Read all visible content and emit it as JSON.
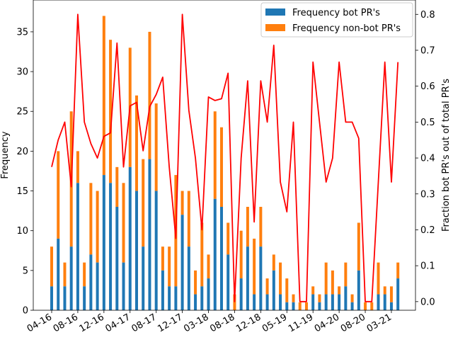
{
  "chart_data": {
    "type": "bar",
    "title": "",
    "xlabel": "",
    "ylabel": "Frequency",
    "y2label": "Fraction bot PR's out of total PR's",
    "ylim": [
      0,
      39
    ],
    "y2lim": [
      -0.024,
      0.84
    ],
    "yticks": [
      0,
      5,
      10,
      15,
      20,
      25,
      30,
      35
    ],
    "y2ticks": [
      "0.0",
      "0.1",
      "0.2",
      "0.3",
      "0.4",
      "0.5",
      "0.6",
      "0.7",
      "0.8"
    ],
    "xticklabels": [
      "04-16",
      "08-16",
      "12-16",
      "04-17",
      "08-17",
      "12-17",
      "03-18",
      "08-18",
      "12-18",
      "05-19",
      "11-19",
      "04-20",
      "08-20",
      "03-21"
    ],
    "xtick_indices": [
      0,
      4,
      8,
      12,
      16,
      20,
      24,
      28,
      32,
      36,
      40,
      44,
      48,
      52
    ],
    "legend_position": "top-right",
    "colors": {
      "bot": "#1f77b4",
      "nonbot": "#ff7f0e",
      "fraction": "#ff0000"
    },
    "series": [
      {
        "name": "Frequency bot PR's",
        "values": [
          3,
          9,
          3,
          8,
          16,
          3,
          7,
          6,
          17,
          16,
          13,
          6,
          18,
          15,
          8,
          19,
          15,
          5,
          3,
          3,
          12,
          8,
          2,
          3,
          4,
          14,
          13,
          7,
          0,
          4,
          8,
          2,
          8,
          2,
          5,
          2,
          1,
          1,
          0,
          0,
          2,
          1,
          2,
          2,
          2,
          3,
          1,
          5,
          0,
          0,
          2,
          2,
          1,
          4
        ]
      },
      {
        "name": "Frequency non-bot PR's",
        "values": [
          8,
          20,
          6,
          25,
          20,
          6,
          16,
          15,
          37,
          34,
          18,
          16,
          33,
          27,
          19,
          35,
          26,
          8,
          8,
          17,
          15,
          15,
          5,
          11,
          7,
          25,
          23,
          11,
          2,
          10,
          13,
          9,
          13,
          4,
          7,
          6,
          4,
          2,
          1,
          1,
          3,
          2,
          6,
          5,
          3,
          6,
          2,
          11,
          1,
          1,
          6,
          3,
          3,
          6
        ]
      },
      {
        "name": "",
        "values": [
          0.375,
          0.45,
          0.5,
          0.32,
          0.8,
          0.5,
          0.44,
          0.4,
          0.46,
          0.47,
          0.72,
          0.375,
          0.545,
          0.555,
          0.42,
          0.543,
          0.577,
          0.625,
          0.375,
          0.176,
          0.8,
          0.533,
          0.4,
          0.2,
          0.57,
          0.56,
          0.565,
          0.636,
          0.0,
          0.4,
          0.615,
          0.222,
          0.615,
          0.5,
          0.714,
          0.333,
          0.25,
          0.5,
          0.0,
          0.0,
          0.667,
          0.5,
          0.333,
          0.4,
          0.667,
          0.5,
          0.5,
          0.455,
          0.0,
          0.0,
          0.333,
          0.667,
          0.333,
          0.667
        ]
      }
    ]
  }
}
